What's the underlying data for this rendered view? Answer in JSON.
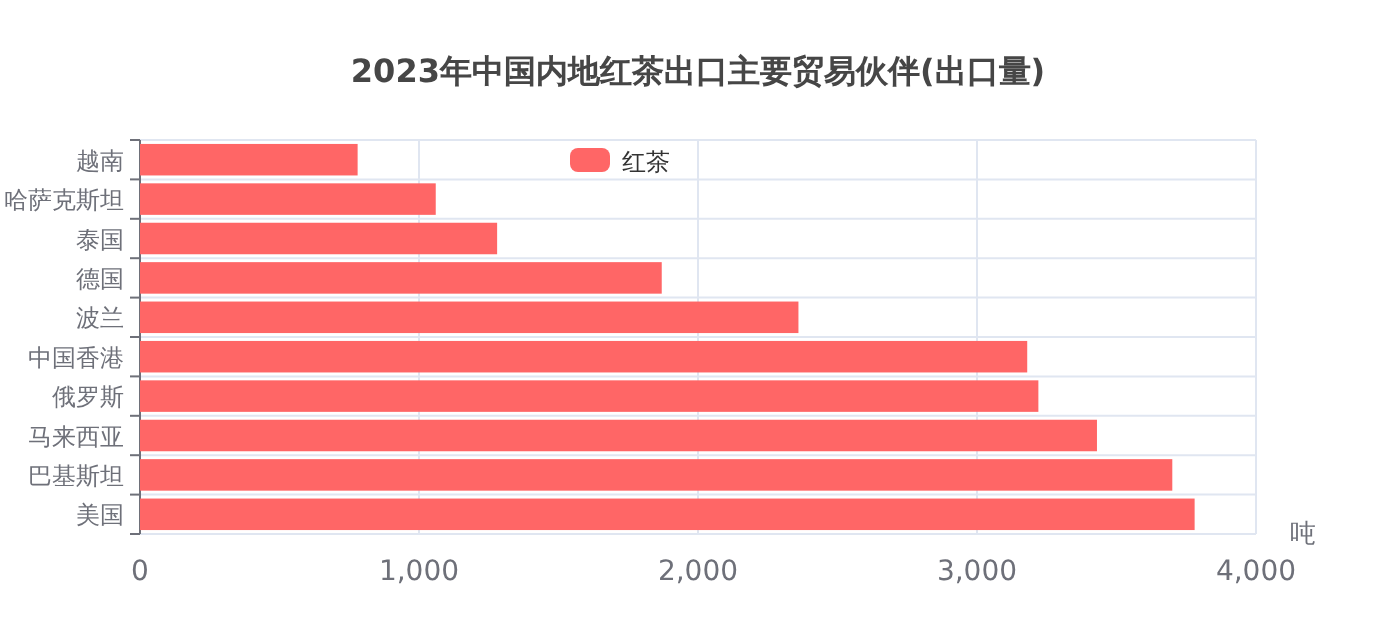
{
  "chart_data": {
    "type": "bar",
    "orientation": "horizontal",
    "title": "2023年中国内地红茶出口主要贸易伙伴(出口量)",
    "xlabel": "吨",
    "categories": [
      "越南",
      "哈萨克斯坦",
      "泰国",
      "德国",
      "波兰",
      "中国香港",
      "俄罗斯",
      "马来西亚",
      "巴基斯坦",
      "美国"
    ],
    "series": [
      {
        "name": "红茶",
        "color": "#ff6666",
        "values": [
          780,
          1060,
          1280,
          1870,
          2360,
          3180,
          3220,
          3430,
          3700,
          3780
        ]
      }
    ],
    "xlim": [
      0,
      4000
    ],
    "xticks": [
      0,
      {
        "value": 1000,
        "label": "1,000"
      },
      {
        "value": 2000,
        "label": "2,000"
      },
      {
        "value": 3000,
        "label": "3,000"
      },
      {
        "value": 4000,
        "label": "4,000"
      }
    ],
    "grid": true,
    "legend": "top"
  }
}
